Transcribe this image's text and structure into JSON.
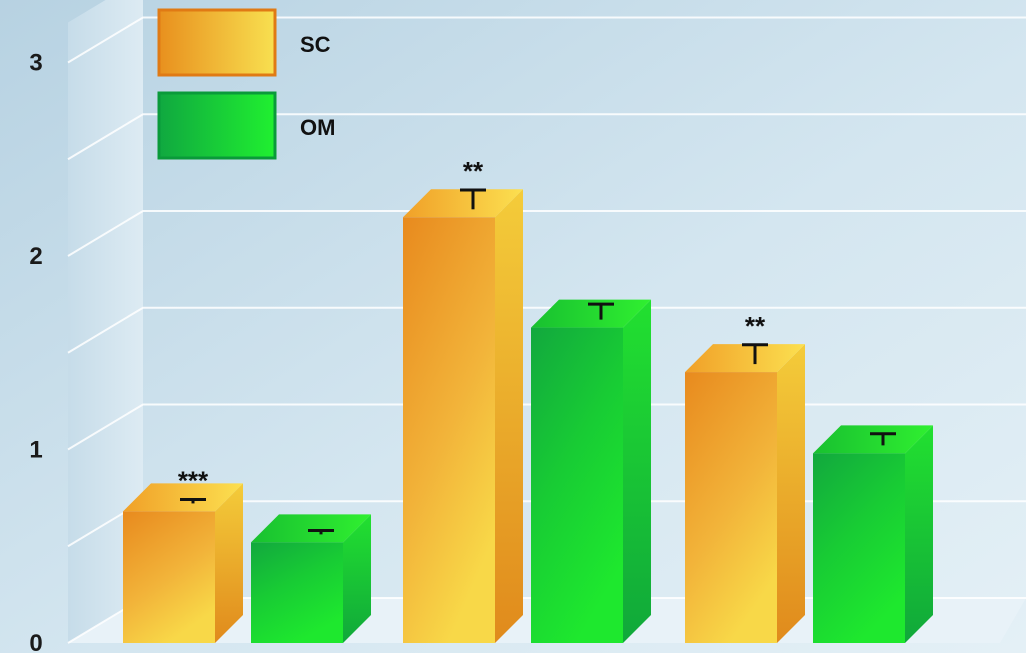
{
  "chart_data": {
    "type": "bar",
    "categories": [
      "",
      "",
      ""
    ],
    "series": [
      {
        "name": "SC",
        "values": [
          0.68,
          2.2,
          1.4
        ],
        "errors": [
          0.02,
          0.1,
          0.1
        ]
      },
      {
        "name": "OM",
        "values": [
          0.52,
          1.63,
          0.98
        ],
        "errors": [
          0.02,
          0.08,
          0.06
        ]
      }
    ],
    "significance": [
      [
        "***",
        ""
      ],
      [
        "**",
        ""
      ],
      [
        "**",
        ""
      ]
    ],
    "ylim": [
      0,
      3
    ],
    "yticks": [
      0,
      1,
      2,
      3
    ],
    "grid": true,
    "legend": "top-left",
    "colors": {
      "SC": "#f0a020",
      "OM": "#18d030"
    }
  }
}
